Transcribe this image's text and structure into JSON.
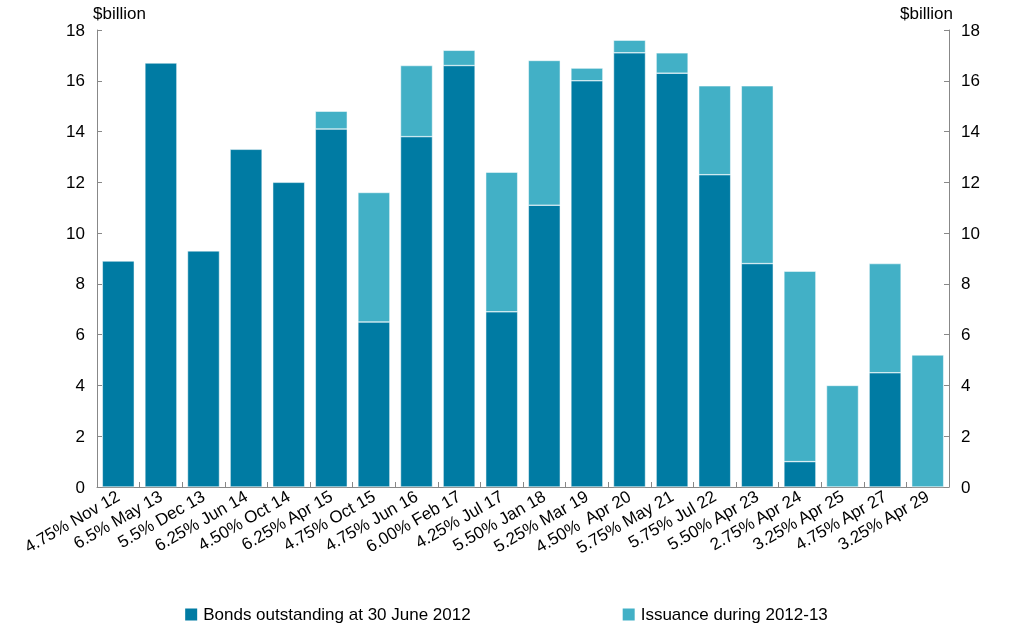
{
  "chart_data": {
    "type": "bar",
    "stacked": true,
    "ylabel": "$billion",
    "y2label": "$billion",
    "categories": [
      "4.75% Nov 12",
      "6.5% May 13",
      "5.5% Dec 13",
      "6.25% Jun 14",
      "4.50% Oct 14",
      "6.25% Apr 15",
      "4.75% Oct 15",
      "4.75% Jun 16",
      "6.00% Feb 17",
      "4.25% Jul 17",
      "5.50% Jan 18",
      "5.25% Mar 19",
      "4.50%  Apr 20",
      "5.75% May 21",
      "5.75% Jul 22",
      "5.50% Apr 23",
      "2.75% Apr 24",
      "3.25% Apr 25",
      "4.75% Apr 27",
      "3.25% Apr 29"
    ],
    "series": [
      {
        "name": "Bonds outstanding at 30 June 2012",
        "color": "#007ba3",
        "values": [
          8.9,
          16.7,
          9.3,
          13.3,
          12.0,
          14.1,
          6.5,
          13.8,
          16.6,
          6.9,
          11.1,
          16.0,
          17.1,
          16.3,
          12.3,
          8.8,
          1.0,
          null,
          4.5,
          null
        ]
      },
      {
        "name": "Issuance during 2012-13",
        "color": "#42b0c6",
        "values": [
          null,
          null,
          null,
          null,
          null,
          0.7,
          5.1,
          2.8,
          0.6,
          5.5,
          5.7,
          0.5,
          0.5,
          0.8,
          3.5,
          7.0,
          7.5,
          4.0,
          4.3,
          5.2
        ]
      }
    ],
    "ylim": [
      0,
      18
    ],
    "yticks": [
      0,
      2,
      4,
      6,
      8,
      10,
      12,
      14,
      16,
      18
    ],
    "y2lim": [
      0,
      18
    ],
    "y2ticks": [
      0,
      2,
      4,
      6,
      8,
      10,
      12,
      14,
      16,
      18
    ],
    "grid": false,
    "legend": "bottom"
  }
}
